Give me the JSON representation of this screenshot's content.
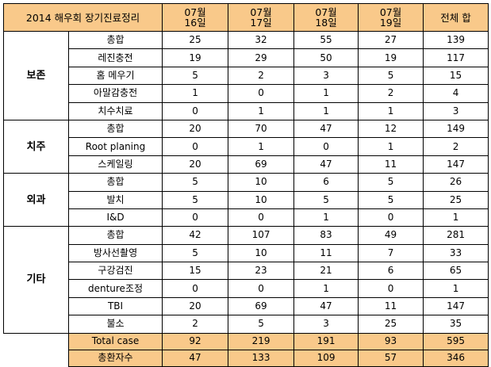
{
  "table": {
    "title": "2014 해우회 장기진료정리",
    "columns": [
      {
        "month": "07월",
        "day": "16일"
      },
      {
        "month": "07월",
        "day": "17일"
      },
      {
        "month": "07월",
        "day": "18일"
      },
      {
        "month": "07월",
        "day": "19일"
      }
    ],
    "total_header": "전체 합",
    "groups": [
      {
        "name": "보존",
        "rows": [
          {
            "label": "총합",
            "values": [
              "25",
              "32",
              "55",
              "27",
              "139"
            ]
          },
          {
            "label": "레진충전",
            "values": [
              "19",
              "29",
              "50",
              "19",
              "117"
            ]
          },
          {
            "label": "홈 메우기",
            "values": [
              "5",
              "2",
              "3",
              "5",
              "15"
            ]
          },
          {
            "label": "아말감충전",
            "values": [
              "1",
              "0",
              "1",
              "2",
              "4"
            ]
          },
          {
            "label": "치수치료",
            "values": [
              "0",
              "1",
              "1",
              "1",
              "3"
            ]
          }
        ]
      },
      {
        "name": "치주",
        "rows": [
          {
            "label": "총합",
            "values": [
              "20",
              "70",
              "47",
              "12",
              "149"
            ]
          },
          {
            "label": "Root planing",
            "values": [
              "0",
              "1",
              "0",
              "1",
              "2"
            ]
          },
          {
            "label": "스케일링",
            "values": [
              "20",
              "69",
              "47",
              "11",
              "147"
            ]
          }
        ]
      },
      {
        "name": "외과",
        "rows": [
          {
            "label": "총합",
            "values": [
              "5",
              "10",
              "6",
              "5",
              "26"
            ]
          },
          {
            "label": "발치",
            "values": [
              "5",
              "10",
              "5",
              "5",
              "25"
            ]
          },
          {
            "label": "I&D",
            "values": [
              "0",
              "0",
              "1",
              "0",
              "1"
            ]
          }
        ]
      },
      {
        "name": "기타",
        "rows": [
          {
            "label": "총합",
            "values": [
              "42",
              "107",
              "83",
              "49",
              "281"
            ]
          },
          {
            "label": "방사선촬영",
            "values": [
              "5",
              "10",
              "11",
              "7",
              "33"
            ]
          },
          {
            "label": "구강검진",
            "values": [
              "15",
              "23",
              "21",
              "6",
              "65"
            ]
          },
          {
            "label": "denture조정",
            "values": [
              "0",
              "0",
              "1",
              "0",
              "1"
            ]
          },
          {
            "label": "TBI",
            "values": [
              "20",
              "69",
              "47",
              "11",
              "147"
            ]
          },
          {
            "label": "불소",
            "values": [
              "2",
              "5",
              "3",
              "25",
              "35"
            ]
          }
        ]
      }
    ],
    "totals": [
      {
        "label": "Total case",
        "values": [
          "92",
          "219",
          "191",
          "93",
          "595"
        ]
      },
      {
        "label": "총환자수",
        "values": [
          "47",
          "133",
          "109",
          "57",
          "346"
        ]
      }
    ],
    "header_color": "#f9c98a"
  }
}
